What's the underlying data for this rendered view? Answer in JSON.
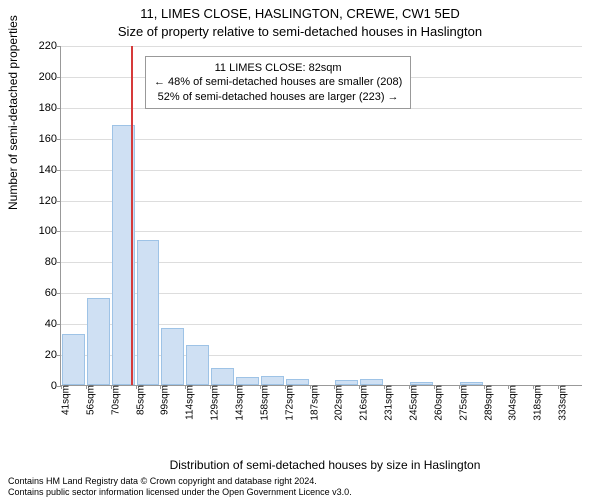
{
  "titles": {
    "line1": "11, LIMES CLOSE, HASLINGTON, CREWE, CW1 5ED",
    "line2": "Size of property relative to semi-detached houses in Haslington"
  },
  "axes": {
    "ylabel": "Number of semi-detached properties",
    "xlabel": "Distribution of semi-detached houses by size in Haslington"
  },
  "footnote": {
    "line1": "Contains HM Land Registry data © Crown copyright and database right 2024.",
    "line2": "Contains public sector information licensed under the Open Government Licence v3.0."
  },
  "chart": {
    "type": "histogram",
    "ylim": [
      0,
      220
    ],
    "ytick_step": 20,
    "bar_fill": "#cfe0f3",
    "bar_stroke": "#9ec3e6",
    "marker_color": "#d63a3a",
    "marker_value_sqm": 82,
    "grid_color": "#dddddd",
    "axis_color": "#999999",
    "x_tick_labels": [
      "41sqm",
      "56sqm",
      "70sqm",
      "85sqm",
      "99sqm",
      "114sqm",
      "129sqm",
      "143sqm",
      "158sqm",
      "172sqm",
      "187sqm",
      "202sqm",
      "216sqm",
      "231sqm",
      "245sqm",
      "260sqm",
      "275sqm",
      "289sqm",
      "304sqm",
      "318sqm",
      "333sqm"
    ],
    "bars": [
      {
        "label": "41sqm",
        "value": 33
      },
      {
        "label": "56sqm",
        "value": 56
      },
      {
        "label": "70sqm",
        "value": 168
      },
      {
        "label": "85sqm",
        "value": 94
      },
      {
        "label": "99sqm",
        "value": 37
      },
      {
        "label": "114sqm",
        "value": 26
      },
      {
        "label": "129sqm",
        "value": 11
      },
      {
        "label": "143sqm",
        "value": 5
      },
      {
        "label": "158sqm",
        "value": 6
      },
      {
        "label": "172sqm",
        "value": 4
      },
      {
        "label": "187sqm",
        "value": 0
      },
      {
        "label": "202sqm",
        "value": 3
      },
      {
        "label": "216sqm",
        "value": 4
      },
      {
        "label": "231sqm",
        "value": 0
      },
      {
        "label": "245sqm",
        "value": 2
      },
      {
        "label": "260sqm",
        "value": 0
      },
      {
        "label": "275sqm",
        "value": 2
      },
      {
        "label": "289sqm",
        "value": 0
      },
      {
        "label": "304sqm",
        "value": 0
      },
      {
        "label": "318sqm",
        "value": 0
      },
      {
        "label": "333sqm",
        "value": 0
      }
    ]
  },
  "infobox": {
    "line1": "11 LIMES CLOSE: 82sqm",
    "line2": "← 48% of semi-detached houses are smaller (208)",
    "line3": "52% of semi-detached houses are larger (223) →"
  }
}
